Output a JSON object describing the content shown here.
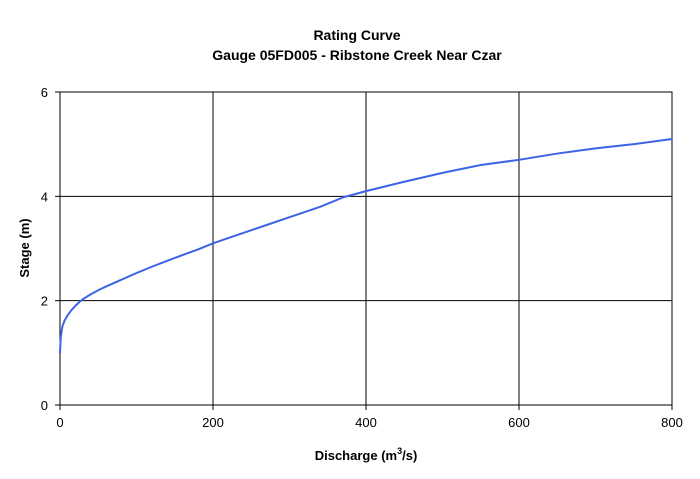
{
  "chart_data": {
    "type": "line",
    "title": "Rating Curve",
    "subtitle": "Gauge 05FD005 - Ribstone Creek Near Czar",
    "xlabel_main": "Discharge (m",
    "xlabel_sup": "3",
    "xlabel_tail": "/s)",
    "ylabel": "Stage (m)",
    "xlim": [
      0,
      800
    ],
    "ylim": [
      0,
      6
    ],
    "xticks": [
      0,
      200,
      400,
      600,
      800
    ],
    "yticks": [
      0,
      2,
      4,
      6
    ],
    "xtick_labels": [
      "0",
      "200",
      "400",
      "600",
      "800"
    ],
    "ytick_labels": [
      "0",
      "2",
      "4",
      "6"
    ],
    "grid": true,
    "legend": "none",
    "series": [
      {
        "color": "#3d63e6",
        "x": [
          0,
          1,
          3,
          6,
          10,
          15,
          20,
          25,
          30,
          40,
          50,
          60,
          80,
          100,
          120,
          150,
          180,
          200,
          230,
          260,
          300,
          340,
          370,
          400,
          450,
          500,
          550,
          600,
          650,
          700,
          750,
          800
        ],
        "y": [
          1.0,
          1.3,
          1.5,
          1.62,
          1.72,
          1.82,
          1.9,
          1.97,
          2.03,
          2.12,
          2.2,
          2.27,
          2.4,
          2.53,
          2.65,
          2.82,
          2.98,
          3.1,
          3.25,
          3.4,
          3.6,
          3.8,
          3.98,
          4.1,
          4.28,
          4.45,
          4.6,
          4.7,
          4.82,
          4.92,
          5.0,
          5.1
        ]
      }
    ]
  }
}
